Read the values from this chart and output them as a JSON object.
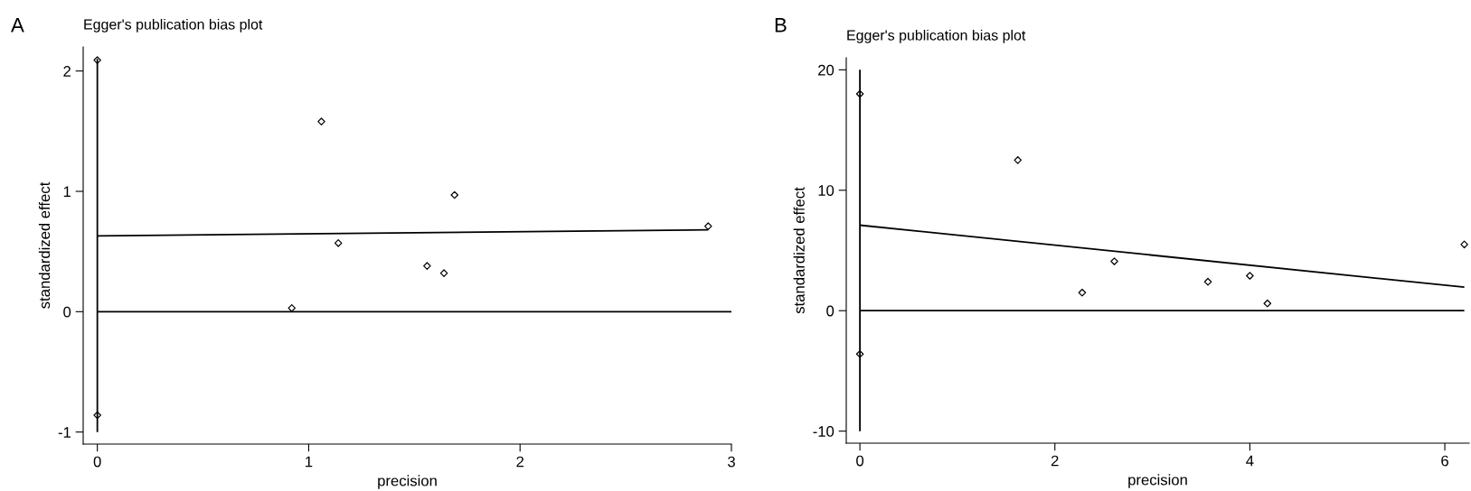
{
  "chart_data": [
    {
      "type": "scatter",
      "title": "Egger's publication bias plot",
      "xlabel": "precision",
      "ylabel": "standardized effect",
      "annotations": [
        "A"
      ],
      "grid": false,
      "legend": false,
      "xlim": [
        -0.067,
        3.0
      ],
      "ylim": [
        -1.1,
        2.2
      ],
      "xticks": [
        0,
        1,
        2,
        3
      ],
      "yticks": [
        -1,
        0,
        1,
        2
      ],
      "series": [
        {
          "marker": "diamond",
          "color": "#000000",
          "x": [
            0,
            0,
            1.06,
            1.14,
            0.92,
            1.56,
            1.64,
            1.69,
            2.89
          ],
          "values": [
            2.09,
            -0.86,
            1.58,
            0.57,
            0.03,
            0.38,
            0.32,
            0.97,
            0.71
          ]
        },
        {
          "type": "line",
          "color": "#000000",
          "x": [
            0,
            2.89
          ],
          "values": [
            0.63,
            0.68
          ]
        },
        {
          "type": "line",
          "color": "#000000",
          "x": [
            0,
            0
          ],
          "values": [
            -1.0,
            2.1
          ]
        },
        {
          "type": "line",
          "color": "#000000",
          "x": [
            0,
            3.0
          ],
          "values": [
            0,
            0
          ]
        }
      ]
    },
    {
      "type": "scatter",
      "title": "Egger's publication bias plot",
      "xlabel": "precision",
      "ylabel": "standardized effect",
      "annotations": [
        "B"
      ],
      "grid": false,
      "legend": false,
      "xlim": [
        -0.14,
        6.25
      ],
      "ylim": [
        -11,
        21
      ],
      "xticks": [
        0,
        2,
        4,
        6
      ],
      "yticks": [
        -10,
        0,
        10,
        20
      ],
      "series": [
        {
          "marker": "diamond",
          "color": "#000000",
          "x": [
            0,
            0,
            1.62,
            2.28,
            2.61,
            3.57,
            4.0,
            4.18,
            6.2
          ],
          "values": [
            18,
            -3.6,
            12.5,
            1.5,
            4.1,
            2.4,
            2.9,
            0.6,
            5.5
          ]
        },
        {
          "type": "line",
          "color": "#000000",
          "x": [
            0,
            6.2
          ],
          "values": [
            7.1,
            1.95
          ]
        },
        {
          "type": "line",
          "color": "#000000",
          "x": [
            0,
            0
          ],
          "values": [
            -10,
            20
          ]
        },
        {
          "type": "line",
          "color": "#000000",
          "x": [
            0,
            6.2
          ],
          "values": [
            0,
            0
          ]
        }
      ]
    }
  ]
}
